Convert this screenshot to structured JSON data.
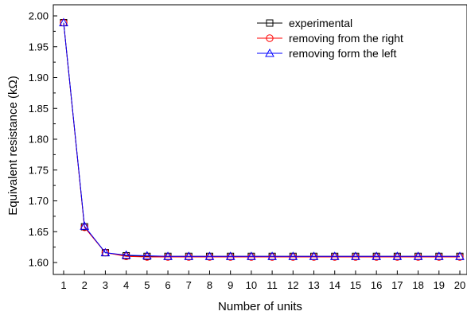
{
  "chart_data": {
    "type": "line",
    "xlabel": "Number of units",
    "ylabel": "Equivalent resistance (kΩ)",
    "x": [
      1,
      2,
      3,
      4,
      5,
      6,
      7,
      8,
      9,
      10,
      11,
      12,
      13,
      14,
      15,
      16,
      17,
      18,
      19,
      20
    ],
    "xlim": [
      0.5,
      20.2
    ],
    "ylim": [
      1.58,
      2.02
    ],
    "y_ticks": [
      1.6,
      1.65,
      1.7,
      1.75,
      1.8,
      1.85,
      1.9,
      1.95,
      2.0
    ],
    "y_tick_labels": [
      "1.60",
      "1.65",
      "1.70",
      "1.75",
      "1.80",
      "1.85",
      "1.90",
      "1.95",
      "2.00"
    ],
    "x_tick_labels": [
      "1",
      "2",
      "3",
      "4",
      "5",
      "6",
      "7",
      "8",
      "9",
      "10",
      "11",
      "12",
      "13",
      "14",
      "15",
      "16",
      "17",
      "18",
      "19",
      "20"
    ],
    "grid": false,
    "legend_position": "top-right",
    "series": [
      {
        "name": "experimental",
        "marker": "square",
        "color": "#000000",
        "values": [
          1.989,
          1.658,
          1.616,
          1.611,
          1.61,
          1.61,
          1.61,
          1.61,
          1.61,
          1.61,
          1.61,
          1.61,
          1.61,
          1.61,
          1.61,
          1.61,
          1.61,
          1.61,
          1.61,
          1.61
        ]
      },
      {
        "name": "removing from the right",
        "marker": "circle",
        "color": "#ff0000",
        "values": [
          1.989,
          1.657,
          1.616,
          1.61,
          1.609,
          1.609,
          1.609,
          1.609,
          1.609,
          1.609,
          1.609,
          1.609,
          1.609,
          1.609,
          1.609,
          1.609,
          1.609,
          1.609,
          1.609,
          1.609
        ]
      },
      {
        "name": "removing form the left",
        "marker": "triangle",
        "color": "#0000ff",
        "values": [
          1.989,
          1.659,
          1.616,
          1.612,
          1.611,
          1.61,
          1.61,
          1.61,
          1.61,
          1.61,
          1.61,
          1.61,
          1.61,
          1.61,
          1.61,
          1.61,
          1.61,
          1.61,
          1.61,
          1.61
        ]
      }
    ]
  }
}
